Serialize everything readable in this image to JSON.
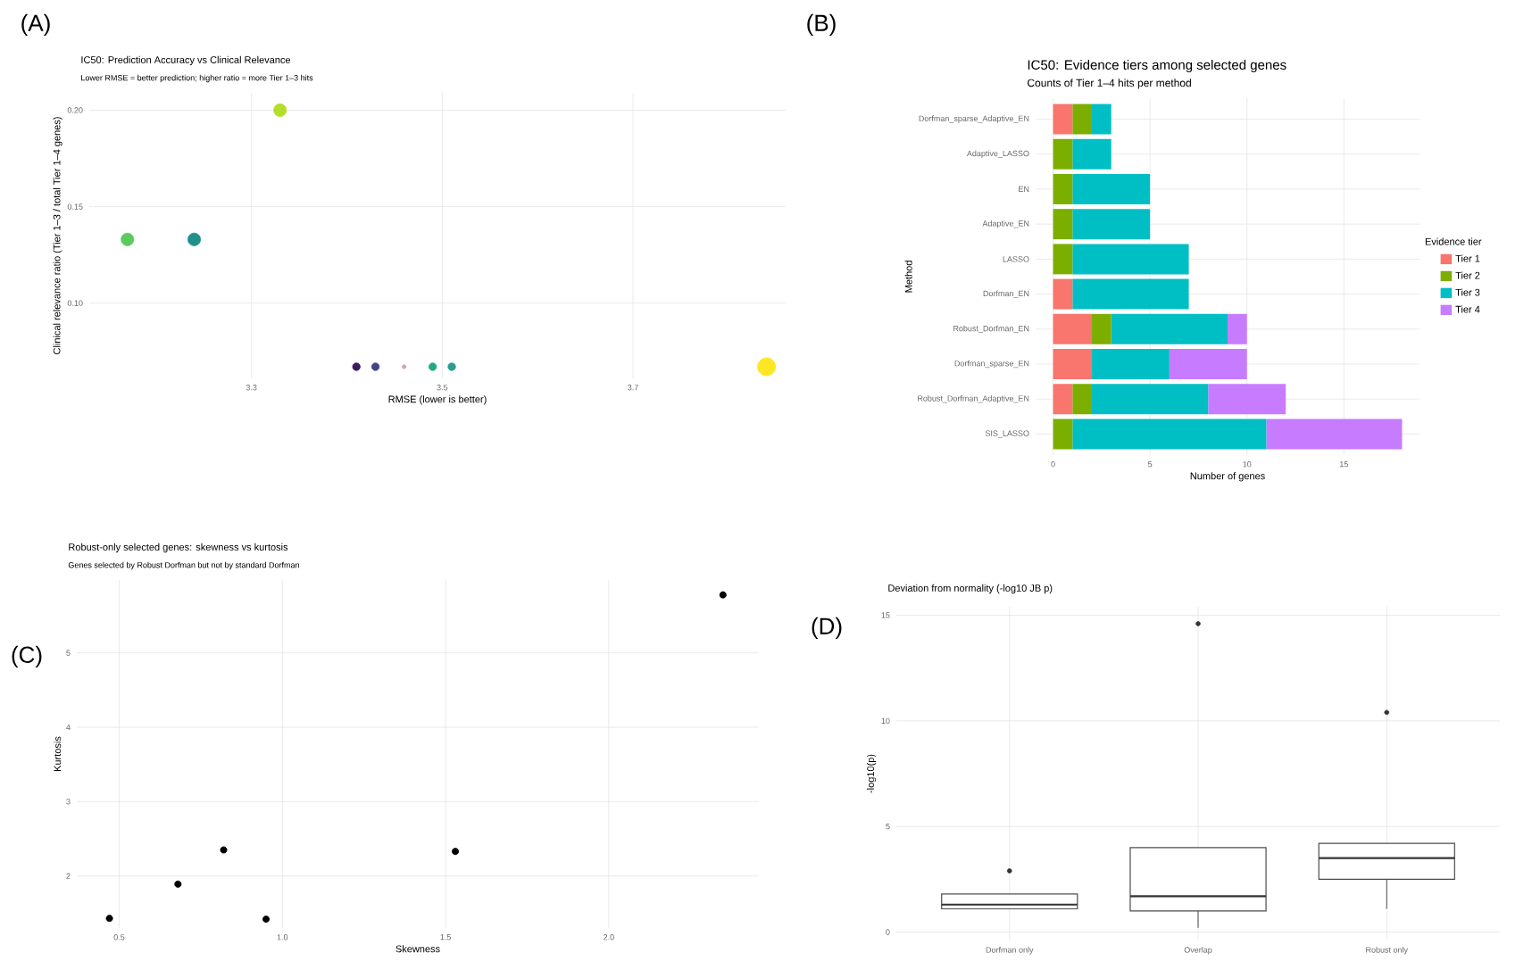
{
  "chart_data": [
    {
      "type": "scatter",
      "title": "IC50: Prediction Accuracy vs Clinical Relevance",
      "subtitle": "Lower RMSE = better prediction; higher ratio = more Tier 1–3 hits",
      "xlabel": "RMSE (lower is better)",
      "ylabel": "Clinical relevance ratio (Tier 1–3 / total Tier 1–4 genes)",
      "annotations": [
        "(A)"
      ],
      "x": [
        3.17,
        3.24,
        3.33,
        3.41,
        3.43,
        3.46,
        3.49,
        3.51,
        3.84
      ],
      "values": [
        0.133,
        0.133,
        0.2,
        0.067,
        0.067,
        0.067,
        0.067,
        0.067,
        0.067
      ],
      "sizes": [
        0.5,
        0.5,
        0.5,
        0.18,
        0.18,
        0.05,
        0.18,
        0.18,
        1
      ],
      "colors": [
        "#5ec962",
        "#21908d",
        "#b5de2b",
        "#3b1c5a",
        "#414487",
        "#d8a0c0",
        "#22a884",
        "#2a9d8f",
        "#fde725"
      ],
      "xlim": [
        3.13,
        3.86
      ],
      "ylim": [
        0.061,
        0.209
      ],
      "xticks": [
        3.3,
        3.5,
        3.7
      ],
      "yticks": [
        {
          "value": 0.1,
          "label": "0.10"
        },
        {
          "value": 0.15,
          "label": "0.15"
        },
        {
          "value": 0.2,
          "label": "0.20"
        }
      ],
      "grid": true,
      "marker": "circle"
    },
    {
      "type": "bar",
      "orientation": "horizontal",
      "stacked": true,
      "title": "IC50: Evidence tiers among selected genes",
      "subtitle": "Counts of Tier 1–4 hits per method",
      "xlabel": "Number of genes",
      "ylabel": "Method",
      "legend_title": "Evidence tier",
      "annotations": [
        "(B)"
      ],
      "categories": [
        "Dorfman_sparse_Adaptive_EN",
        "Adaptive_LASSO",
        "EN",
        "Adaptive_EN",
        "LASSO",
        "Dorfman_EN",
        "Robust_Dorfman_EN",
        "Dorfman_sparse_EN",
        "Robust_Dorfman_Adaptive_EN",
        "SIS_LASSO"
      ],
      "series": [
        {
          "name": "Tier 1",
          "color": "#f8766d",
          "values": [
            1,
            0,
            0,
            0,
            0,
            1,
            2,
            2,
            1,
            0
          ]
        },
        {
          "name": "Tier 2",
          "color": "#7cae00",
          "values": [
            1,
            1,
            1,
            1,
            1,
            0,
            1,
            0,
            1,
            1
          ]
        },
        {
          "name": "Tier 3",
          "color": "#00bfc4",
          "values": [
            1,
            2,
            4,
            4,
            6,
            6,
            6,
            4,
            6,
            10
          ]
        },
        {
          "name": "Tier 4",
          "color": "#c77cff",
          "values": [
            0,
            0,
            0,
            0,
            0,
            0,
            1,
            4,
            4,
            7
          ]
        }
      ],
      "xlim": [
        -0.9,
        18.9
      ],
      "xticks": [
        0,
        5,
        10,
        15
      ],
      "grid": true,
      "legend": "right"
    },
    {
      "type": "scatter",
      "title": "Robust-only selected genes: skewness vs kurtosis",
      "subtitle": "Genes selected by Robust Dorfman but not by standard Dorfman",
      "xlabel": "Skewness",
      "ylabel": "Kurtosis",
      "annotations": [
        "(C)"
      ],
      "x": [
        0.47,
        0.68,
        0.82,
        0.95,
        1.53,
        2.35
      ],
      "values": [
        1.43,
        1.89,
        2.35,
        1.42,
        2.33,
        5.78
      ],
      "color": "#000000",
      "xlim": [
        0.37,
        2.46
      ],
      "ylim": [
        1.3,
        5.98
      ],
      "xticks": [
        0.5,
        {
          "value": 1.0,
          "label": "1.0"
        },
        1.5,
        {
          "value": 2.0,
          "label": "2.0"
        }
      ],
      "yticks": [
        2,
        3,
        4,
        5
      ],
      "grid": true,
      "marker": "circle"
    },
    {
      "type": "box",
      "title": "Deviation from normality (-log10 JB p)",
      "ylabel": "-log10(p)",
      "annotations": [
        "(D)"
      ],
      "categories": [
        "Dorfman only",
        "Overlap",
        "Robust only"
      ],
      "boxes": [
        {
          "low": 1.1,
          "q1": 1.1,
          "median": 1.3,
          "q3": 1.8,
          "high": 1.8,
          "outliers": [
            2.9
          ]
        },
        {
          "low": 0.2,
          "q1": 1.0,
          "median": 1.7,
          "q3": 4.0,
          "high": 4.0,
          "outliers": [
            14.6
          ]
        },
        {
          "low": 1.1,
          "q1": 2.5,
          "median": 3.5,
          "q3": 4.2,
          "high": 4.2,
          "outliers": [
            10.4
          ]
        }
      ],
      "ylim": [
        -0.4,
        15.4
      ],
      "yticks": [
        0,
        5,
        10,
        15
      ],
      "grid": true
    }
  ]
}
